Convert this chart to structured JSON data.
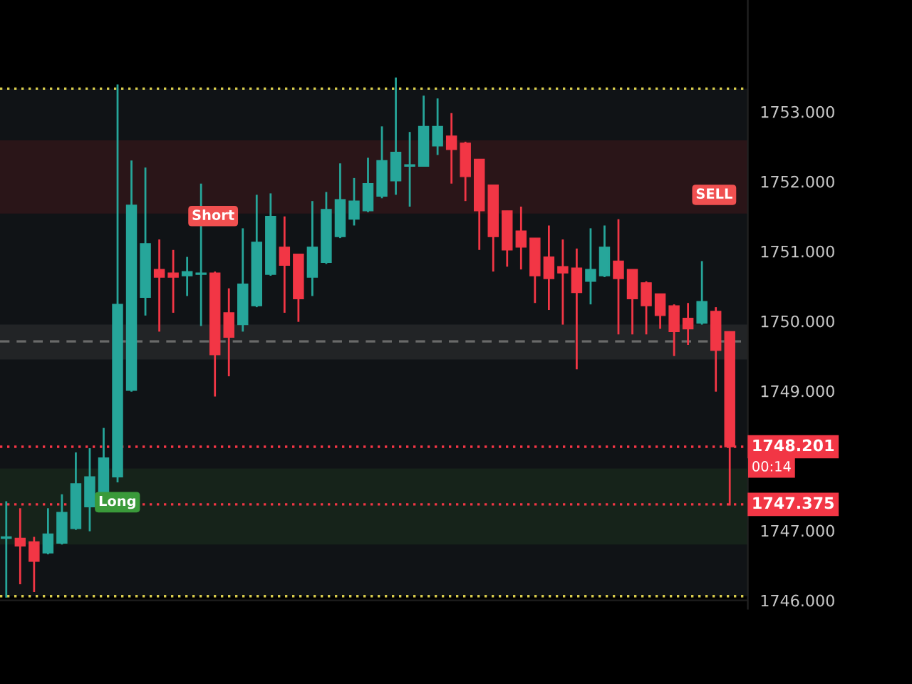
{
  "chart_data": {
    "type": "candlestick",
    "categories": [
      null,
      null,
      null,
      null,
      null,
      null,
      null,
      null,
      null,
      null,
      null,
      null,
      null,
      null,
      null,
      null,
      null,
      null,
      null,
      null,
      null,
      null,
      null,
      null,
      null,
      null,
      null,
      null,
      null,
      null,
      null,
      null,
      null,
      null,
      null,
      null,
      null,
      null,
      null,
      null,
      null,
      null,
      null,
      null,
      null,
      null,
      null,
      null,
      null,
      null,
      null,
      null,
      null
    ],
    "ohlc": [
      [
        1746.89,
        1747.42,
        1746.04,
        1746.9
      ],
      [
        1746.89,
        1747.32,
        1746.23,
        1746.78
      ],
      [
        1746.84,
        1746.91,
        1746.12,
        1746.56
      ],
      [
        1746.68,
        1747.32,
        1746.66,
        1746.95
      ],
      [
        1746.82,
        1747.52,
        1746.8,
        1747.26
      ],
      [
        1747.03,
        1748.12,
        1747.01,
        1747.67
      ],
      [
        1747.34,
        1748.18,
        1746.99,
        1747.77
      ],
      [
        1747.54,
        1748.47,
        1747.52,
        1748.04
      ],
      [
        1747.77,
        1753.39,
        1747.69,
        1750.24
      ],
      [
        1749.01,
        1752.3,
        1748.99,
        1751.66
      ],
      [
        1750.34,
        1752.2,
        1750.08,
        1751.11
      ],
      [
        1750.74,
        1751.17,
        1749.85,
        1750.63
      ],
      [
        1750.69,
        1751.02,
        1750.12,
        1750.63
      ],
      [
        1750.65,
        1750.92,
        1750.36,
        1750.71
      ],
      [
        1750.67,
        1751.97,
        1749.93,
        1750.68
      ],
      [
        1750.69,
        1750.71,
        1748.92,
        1749.52
      ],
      [
        1750.12,
        1750.47,
        1749.21,
        1749.77
      ],
      [
        1749.95,
        1751.33,
        1749.85,
        1750.53
      ],
      [
        1750.22,
        1751.81,
        1750.2,
        1751.13
      ],
      [
        1750.67,
        1751.83,
        1750.65,
        1751.5
      ],
      [
        1751.06,
        1751.5,
        1750.12,
        1750.8
      ],
      [
        1750.96,
        1750.96,
        1749.99,
        1750.32
      ],
      [
        1750.63,
        1751.72,
        1750.36,
        1751.06
      ],
      [
        1750.84,
        1751.85,
        1750.82,
        1751.6
      ],
      [
        1751.21,
        1752.26,
        1751.19,
        1751.74
      ],
      [
        1751.46,
        1752.05,
        1751.37,
        1751.72
      ],
      [
        1751.58,
        1752.34,
        1751.56,
        1751.97
      ],
      [
        1751.79,
        1752.79,
        1751.76,
        1752.3
      ],
      [
        1752.01,
        1753.49,
        1751.81,
        1752.42
      ],
      [
        1752.22,
        1752.71,
        1751.64,
        1752.23
      ],
      [
        1752.22,
        1753.23,
        1752.22,
        1752.79
      ],
      [
        1752.51,
        1753.19,
        1752.38,
        1752.79
      ],
      [
        1752.65,
        1752.98,
        1751.97,
        1752.46
      ],
      [
        1752.55,
        1752.57,
        1751.72,
        1752.07
      ],
      [
        1752.32,
        1752.32,
        1751.02,
        1751.58
      ],
      [
        1751.95,
        1751.95,
        1750.71,
        1751.21
      ],
      [
        1751.58,
        1751.58,
        1750.78,
        1751.02
      ],
      [
        1751.29,
        1751.64,
        1750.74,
        1751.06
      ],
      [
        1751.19,
        1751.19,
        1750.26,
        1750.65
      ],
      [
        1750.92,
        1751.37,
        1750.16,
        1750.61
      ],
      [
        1750.78,
        1751.17,
        1749.95,
        1750.69
      ],
      [
        1750.76,
        1751.04,
        1749.31,
        1750.41
      ],
      [
        1750.57,
        1751.33,
        1750.24,
        1750.74
      ],
      [
        1750.65,
        1751.37,
        1750.63,
        1751.06
      ],
      [
        1750.86,
        1751.46,
        1749.81,
        1750.61
      ],
      [
        1750.74,
        1750.74,
        1749.81,
        1750.32
      ],
      [
        1750.55,
        1750.57,
        1749.81,
        1750.22
      ],
      [
        1750.39,
        1750.39,
        1749.89,
        1750.08
      ],
      [
        1750.22,
        1750.24,
        1749.5,
        1749.85
      ],
      [
        1750.04,
        1750.26,
        1749.66,
        1749.89
      ],
      [
        1749.97,
        1750.86,
        1749.95,
        1750.28
      ],
      [
        1750.14,
        1750.2,
        1748.99,
        1749.58
      ],
      [
        1749.85,
        1749.85,
        1747.36,
        1748.2
      ]
    ],
    "colors": [
      "#26a69a",
      "#f23645",
      "#f23645",
      "#26a69a",
      "#26a69a",
      "#26a69a",
      "#26a69a",
      "#26a69a",
      "#26a69a",
      "#26a69a",
      "#26a69a",
      "#f23645",
      "#f23645",
      "#26a69a",
      "#26a69a",
      "#f23645",
      "#f23645",
      "#26a69a",
      "#26a69a",
      "#26a69a",
      "#f23645",
      "#f23645",
      "#26a69a",
      "#26a69a",
      "#26a69a",
      "#26a69a",
      "#26a69a",
      "#26a69a",
      "#26a69a",
      "#26a69a",
      "#26a69a",
      "#26a69a",
      "#f23645",
      "#f23645",
      "#f23645",
      "#f23645",
      "#f23645",
      "#f23645",
      "#f23645",
      "#f23645",
      "#f23645",
      "#f23645",
      "#26a69a",
      "#26a69a",
      "#f23645",
      "#f23645",
      "#f23645",
      "#f23645",
      "#f23645",
      "#f23645",
      "#26a69a",
      "#f23645",
      "#f23645"
    ],
    "ylim": [
      1745.88,
      1754.6
    ],
    "yticks": [
      {
        "value": 1746,
        "label": "1746.000"
      },
      {
        "value": 1747,
        "label": "1747.000"
      },
      {
        "value": 1749,
        "label": "1749.000"
      },
      {
        "value": 1750,
        "label": "1750.000"
      },
      {
        "value": 1751,
        "label": "1751.000"
      },
      {
        "value": 1752,
        "label": "1752.000"
      },
      {
        "value": 1753,
        "label": "1753.000"
      }
    ],
    "grid": "y",
    "tick_labels": "y",
    "bands": [
      {
        "axis": "y",
        "from": 1746.06,
        "to": 1753.33,
        "label": null,
        "color": "#101316"
      },
      {
        "axis": "y",
        "from": 1751.54,
        "to": 1752.59,
        "label": null,
        "color": "#2a1518"
      },
      {
        "axis": "y",
        "from": 1749.45,
        "to": 1749.95,
        "label": null,
        "color": "#222426"
      },
      {
        "axis": "y",
        "from": 1746.8,
        "to": 1747.89,
        "label": null,
        "color": "#16231a"
      }
    ],
    "ref_lines": [
      {
        "axis": "y",
        "value": 1753.33,
        "label": null,
        "color": "#d8cc4c",
        "line_style": "dotted"
      },
      {
        "axis": "y",
        "value": 1746.06,
        "label": null,
        "color": "#d8cc4c",
        "line_style": "dotted"
      },
      {
        "axis": "y",
        "value": 1749.71,
        "label": null,
        "color": "#6a6a6a",
        "line_style": "dashed"
      },
      {
        "axis": "y",
        "value": 1748.201,
        "label": "1748.201",
        "color": "#f23645",
        "line_style": "dotted"
      },
      {
        "axis": "y",
        "value": 1747.375,
        "label": "1747.375",
        "color": "#f23645",
        "line_style": "dotted"
      }
    ],
    "annotations": [
      "Long",
      "Short",
      "SELL",
      "00:14"
    ]
  }
}
